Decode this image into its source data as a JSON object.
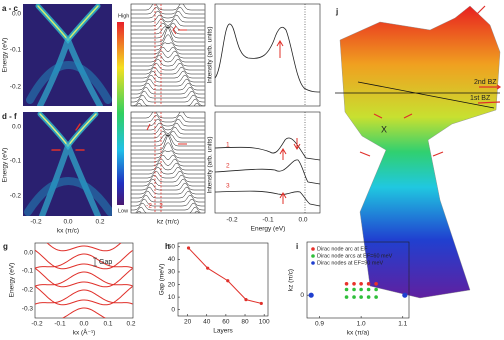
{
  "labels": {
    "a_c": "a - c",
    "d_f": "d - f",
    "g": "g",
    "h": "h",
    "i": "i",
    "j": "j"
  },
  "colorbar": {
    "high": "High",
    "low": "Low"
  },
  "panel_a": {
    "y_label": "Energy (eV)",
    "yticks": [
      "0.0",
      "-0.1",
      "-0.2"
    ]
  },
  "panel_c": {
    "y_label": "Intensity (arb. units)"
  },
  "panel_d": {
    "y_label": "Energy (eV)",
    "yticks": [
      "0.0",
      "-0.1",
      "-0.2"
    ],
    "xticks": [
      "-0.2",
      "0.0",
      "0.2"
    ],
    "x_label": "kx (π/c)"
  },
  "panel_e": {
    "x_label": "kz (π/c)",
    "annotations": [
      "-2",
      "2"
    ]
  },
  "panel_f": {
    "y_label": "Intensity (arb. units)",
    "xticks": [
      "-0.2",
      "-0.1",
      "0.0"
    ],
    "x_label": "Energy (eV)",
    "curve_labels": [
      "1",
      "2",
      "3"
    ]
  },
  "panel_g": {
    "y_label": "Energy (eV)",
    "yticks": [
      "0.0",
      "-0.1",
      "-0.2",
      "-0.3"
    ],
    "xticks": [
      "-0.2",
      "-0.1",
      "0.0",
      "0.1",
      "0.2"
    ],
    "x_label": "kx (Å⁻¹)",
    "annotation": "Gap"
  },
  "panel_j": {
    "bz2": "2nd BZ",
    "bz1": "1st BZ",
    "point": "X"
  },
  "chart_data": [
    {
      "type": "line",
      "x_label": "Layers",
      "y_label": "Gap (meV)",
      "x": [
        21,
        41,
        62,
        81,
        97
      ],
      "values": [
        49,
        33,
        23,
        8,
        5
      ],
      "color": "#e0302a",
      "xlim": [
        10,
        104
      ],
      "ylim": [
        -5,
        53
      ],
      "xticks": [
        20,
        40,
        60,
        80,
        100
      ],
      "yticks": [
        0,
        10,
        20,
        30,
        40,
        50
      ]
    },
    {
      "type": "scatter",
      "x_label": "kx (π/a)",
      "y_label": "kz (π/c)",
      "xlim": [
        0.87,
        1.115
      ],
      "ylim": [
        -0.6,
        1.4
      ],
      "xticks": [
        0.9,
        {
          "value": 1,
          "label": "1.0"
        },
        1.1
      ],
      "yticks": [
        0
      ],
      "legend": "top-left",
      "series": [
        {
          "name": "Dirac node arc at EF",
          "color": "#e8312a",
          "x": [
            0.965,
            0.983,
            1.0,
            1.018,
            1.036
          ],
          "values": [
            0.3,
            0.3,
            0.3,
            0.3,
            0.3
          ]
        },
        {
          "name": "Dirac node arcs at EF=60 meV",
          "color": "#2fbf3a",
          "x": [
            0.965,
            0.983,
            1.0,
            1.018,
            1.036,
            0.965,
            0.983,
            1.0,
            1.018,
            1.036
          ],
          "values": [
            0.15,
            0.15,
            0.15,
            0.15,
            0.15,
            -0.05,
            -0.05,
            -0.05,
            -0.05,
            -0.05
          ]
        },
        {
          "name": "Dirac nodes at EF=90 meV",
          "color": "#1f3fcf",
          "x": [
            0.88,
            1.105
          ],
          "values": [
            0,
            0
          ]
        }
      ]
    }
  ]
}
